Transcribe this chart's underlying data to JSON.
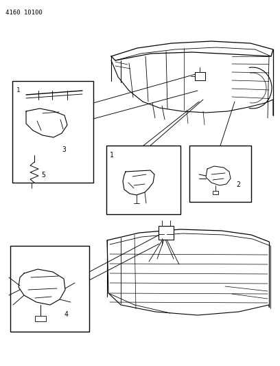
{
  "background_color": "#ffffff",
  "line_color": "#000000",
  "fig_width": 4.08,
  "fig_height": 5.33,
  "dpi": 100,
  "header_text": "4160 10100",
  "header_fontsize": 6.5
}
